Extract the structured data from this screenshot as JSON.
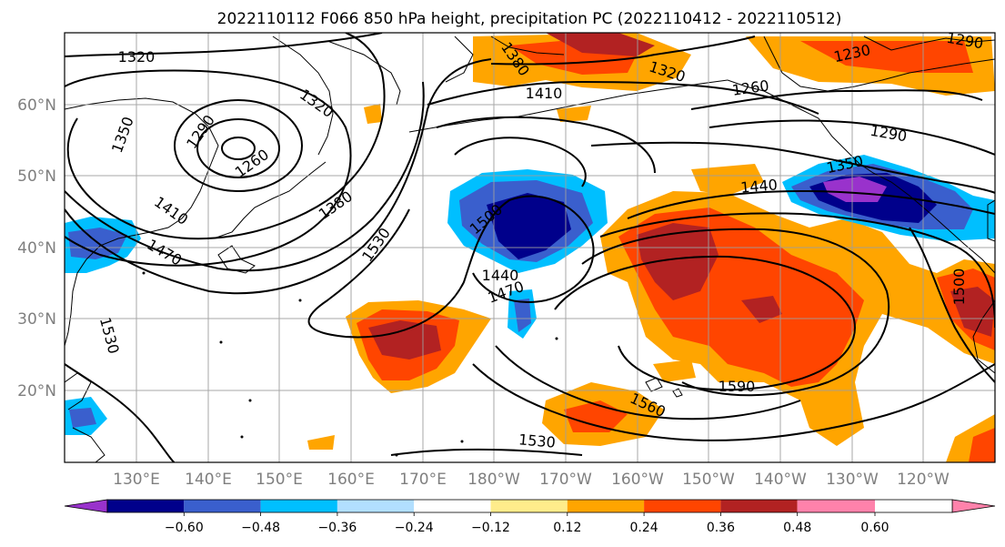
{
  "title": "2022110112 F066 850 hPa height, precipitation PC (2022110412 - 2022110512)",
  "lat_labels": [
    "60°N",
    "50°N",
    "40°N",
    "30°N",
    "20°N"
  ],
  "lon_labels": [
    "130°E",
    "140°E",
    "150°E",
    "160°E",
    "170°E",
    "180°W",
    "170°W",
    "160°W",
    "150°W",
    "140°W",
    "130°W",
    "120°W"
  ],
  "colorbar": {
    "ticks": [
      "−0.60",
      "−0.48",
      "−0.36",
      "−0.24",
      "−0.12",
      "0.12",
      "0.24",
      "0.36",
      "0.48",
      "0.60"
    ],
    "colors": [
      "#9932cc",
      "#00008b",
      "#3a5fcd",
      "#00bfff",
      "#b2dfff",
      "#ffffff",
      "#ffec8b",
      "#ffa500",
      "#ff4500",
      "#b22222",
      "#ff82ab"
    ]
  },
  "contour_labels": [
    "1320",
    "1320",
    "1290",
    "1350",
    "1260",
    "1410",
    "1470",
    "1530",
    "1380",
    "1530",
    "1410",
    "1320",
    "1260",
    "1230",
    "1290",
    "1290",
    "1350",
    "1440",
    "1500",
    "1440",
    "1470",
    "1560",
    "1590",
    "1530",
    "1500",
    "1380"
  ]
}
